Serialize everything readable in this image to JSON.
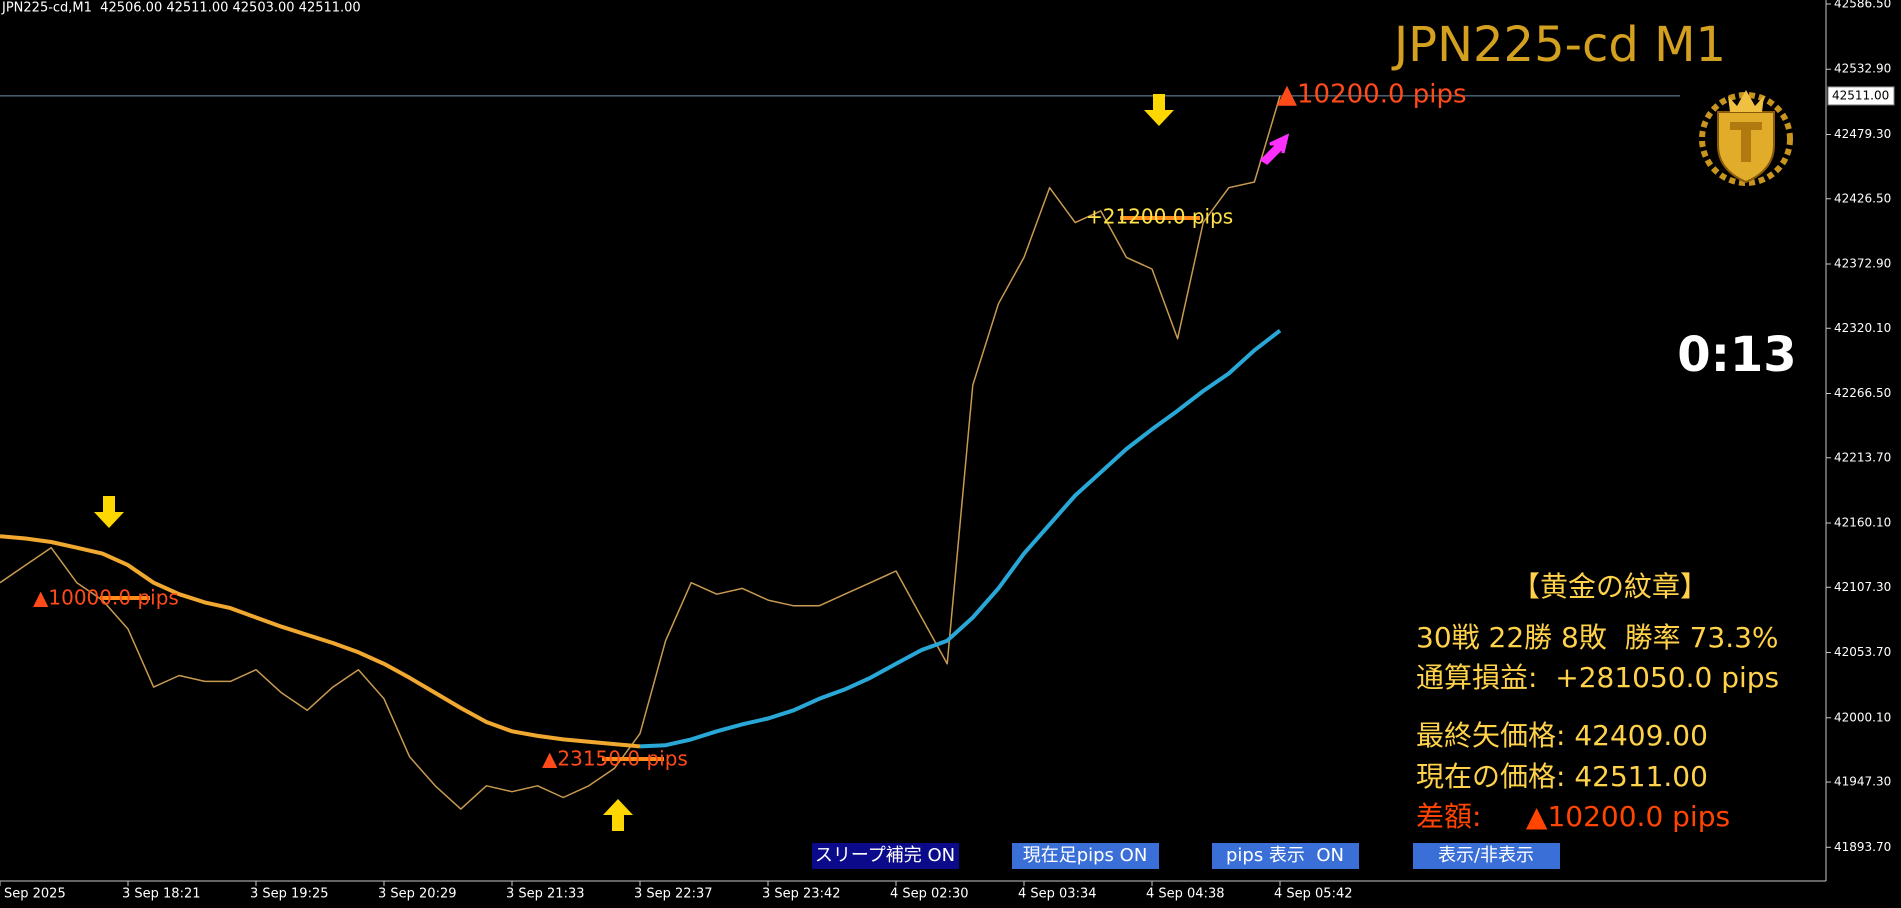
{
  "header": "JPN225-cd,M1  42506.00 42511.00 42503.00 42511.00",
  "chart_data": {
    "type": "line",
    "title": "JPN225-cd M1",
    "categories": [
      "Sep 2025",
      null,
      null,
      null,
      null,
      "3 Sep 18:21",
      null,
      null,
      null,
      null,
      "3 Sep 19:25",
      null,
      null,
      null,
      null,
      "3 Sep 20:29",
      null,
      null,
      null,
      null,
      "3 Sep 21:33",
      null,
      null,
      null,
      null,
      "3 Sep 22:37",
      null,
      null,
      null,
      null,
      "3 Sep 23:42",
      null,
      null,
      null,
      null,
      "4 Sep 02:30",
      null,
      null,
      null,
      null,
      "4 Sep 03:34",
      null,
      null,
      null,
      null,
      "4 Sep 04:38",
      null,
      null,
      null,
      null,
      "4 Sep 05:42"
    ],
    "series": [
      {
        "color": "#c89a50",
        "values": [
          42111.1,
          42125.5,
          42139.8,
          42111.1,
          42096.8,
          42073.0,
          42025.3,
          42034.8,
          42030.0,
          42030.0,
          42039.6,
          42020.5,
          42006.2,
          42025.3,
          42039.6,
          42015.7,
          41968.0,
          41944.2,
          41925.1,
          41944.2,
          41939.4,
          41944.2,
          41934.6,
          41944.2,
          41958.5,
          41987.1,
          42063.4,
          42111.1,
          42101.6,
          42106.4,
          42096.8,
          42092.1,
          42092.1,
          42101.6,
          42111.1,
          42120.7,
          42082.5,
          42044.4,
          42273.4,
          42340.2,
          42378.3,
          42435.6,
          42406.9,
          42416.5,
          42378.3,
          42368.8,
          42311.5,
          42406.9,
          42435.6,
          42440.3,
          42511.0
        ]
      },
      {
        "color": "#f0a830",
        "values": [
          42149.3,
          42147.4,
          42144.5,
          42139.8,
          42135.0,
          42125.5,
          42111.1,
          42101.6,
          42094.9,
          42090.2,
          42082.5,
          42074.9,
          42068.2,
          42061.5,
          42053.9,
          42044.4,
          42032.9,
          42020.5,
          42008.1,
          41996.6,
          41989.0,
          41985.2,
          41982.3,
          41980.4,
          41978.5,
          41976.6,
          null,
          null,
          null,
          null,
          null,
          null,
          null,
          null,
          null,
          null,
          null,
          null,
          null,
          null,
          null,
          null,
          null,
          null,
          null,
          null,
          null,
          null,
          null,
          null,
          null
        ]
      },
      {
        "color": "#29a8d8",
        "values": [
          null,
          null,
          null,
          null,
          null,
          null,
          null,
          null,
          null,
          null,
          null,
          null,
          null,
          null,
          null,
          null,
          null,
          null,
          null,
          null,
          null,
          null,
          null,
          null,
          null,
          41976.6,
          41977.6,
          41982.3,
          41989.0,
          41994.7,
          41999.5,
          42006.2,
          42015.7,
          42023.4,
          42032.9,
          42044.4,
          42055.8,
          42063.4,
          42082.5,
          42106.4,
          42135.0,
          42158.9,
          42182.7,
          42201.8,
          42220.9,
          42237.1,
          42252.4,
          42268.6,
          42282.9,
          42302.0,
          42318.2
        ]
      }
    ],
    "ylim": [
      41866,
      42586.5
    ],
    "yticks": [
      {
        "value": 42586.5,
        "label": "42586.50"
      },
      {
        "value": 42532.9,
        "label": "42532.90"
      },
      {
        "value": 42479.3,
        "label": "42479.30"
      },
      {
        "value": 42426.5,
        "label": "42426.50"
      },
      {
        "value": 42372.9,
        "label": "42372.90"
      },
      {
        "value": 42320.1,
        "label": "42320.10"
      },
      {
        "value": 42266.5,
        "label": "42266.50"
      },
      {
        "value": 42213.7,
        "label": "42213.70"
      },
      {
        "value": 42160.1,
        "label": "42160.10"
      },
      {
        "value": 42107.3,
        "label": "42107.30"
      },
      {
        "value": 42053.7,
        "label": "42053.70"
      },
      {
        "value": 42000.1,
        "label": "42000.10"
      },
      {
        "value": 41947.3,
        "label": "41947.30"
      },
      {
        "value": 41893.7,
        "label": "41893.70"
      }
    ],
    "current_price": {
      "value": 42511,
      "label": "42511.00"
    },
    "annotations": [
      "▲10000.0 pips",
      "▲23150.0 pips",
      "+21200.0 pips",
      "▲10200.0 pips"
    ]
  },
  "timer": "0:13",
  "panel": [
    "【黄金の紋章】",
    "30戦 22勝 8敗  勝率 73.3%",
    "通算損益:  +281050.0 pips",
    "最終矢価格: 42409.00",
    "現在の価格: 42511.00",
    "差額:     ▲10200.0 pips"
  ],
  "buttons": [
    "スリープ補完 ON",
    "現在足pips ON",
    "pips 表示  ON",
    "表示/非表示"
  ]
}
